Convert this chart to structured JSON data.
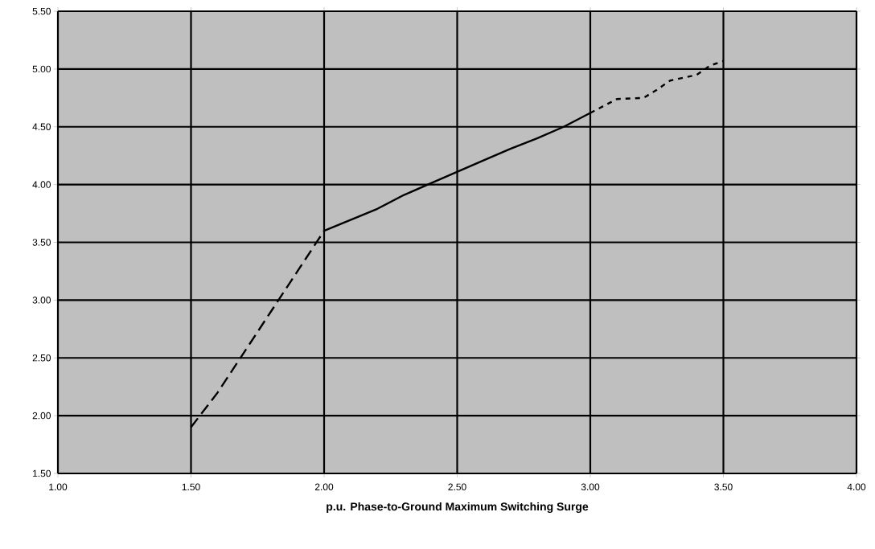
{
  "chart_data": {
    "type": "line",
    "xlabel": "p.u. Phase-to-Ground Maximum Switching Surge",
    "xlim": [
      1,
      4
    ],
    "ylim": [
      1.5,
      5.5
    ],
    "xticks": [
      {
        "value": 1,
        "label": "1.00"
      },
      {
        "value": 1.5,
        "label": "1.50"
      },
      {
        "value": 2,
        "label": "2.00"
      },
      {
        "value": 2.5,
        "label": "2.50"
      },
      {
        "value": 3,
        "label": "3.00"
      },
      {
        "value": 3.5,
        "label": "3.50"
      },
      {
        "value": 4,
        "label": "4.00"
      }
    ],
    "yticks": [
      {
        "value": 1.5,
        "label": "1.50"
      },
      {
        "value": 2,
        "label": "2.00"
      },
      {
        "value": 2.5,
        "label": "2.50"
      },
      {
        "value": 3,
        "label": "3.00"
      },
      {
        "value": 3.5,
        "label": "3.50"
      },
      {
        "value": 4,
        "label": "4.00"
      },
      {
        "value": 4.5,
        "label": "4.50"
      },
      {
        "value": 5,
        "label": "5.00"
      },
      {
        "value": 5.5,
        "label": "5.50"
      }
    ],
    "grid": true,
    "marker": "none",
    "series": [
      {
        "color": "#000000",
        "line_style": "dashed",
        "x": [
          1.5,
          1.6,
          1.7,
          1.8,
          1.9,
          2.0
        ],
        "values": [
          1.9,
          2.2,
          2.55,
          2.9,
          3.25,
          3.6
        ]
      },
      {
        "color": "#000000",
        "line_style": "solid",
        "x": [
          2.0,
          2.2,
          2.3,
          2.4,
          2.5,
          2.6,
          2.7,
          2.8,
          2.9,
          3.0
        ],
        "values": [
          3.6,
          3.79,
          3.91,
          4.01,
          4.11,
          4.21,
          4.31,
          4.4,
          4.5,
          4.62
        ]
      },
      {
        "color": "#000000",
        "line_style": "dotted",
        "x": [
          3.0,
          3.1,
          3.2,
          3.25,
          3.3,
          3.4,
          3.45,
          3.5
        ],
        "values": [
          4.62,
          4.74,
          4.75,
          4.82,
          4.9,
          4.95,
          5.03,
          5.07
        ]
      }
    ]
  }
}
